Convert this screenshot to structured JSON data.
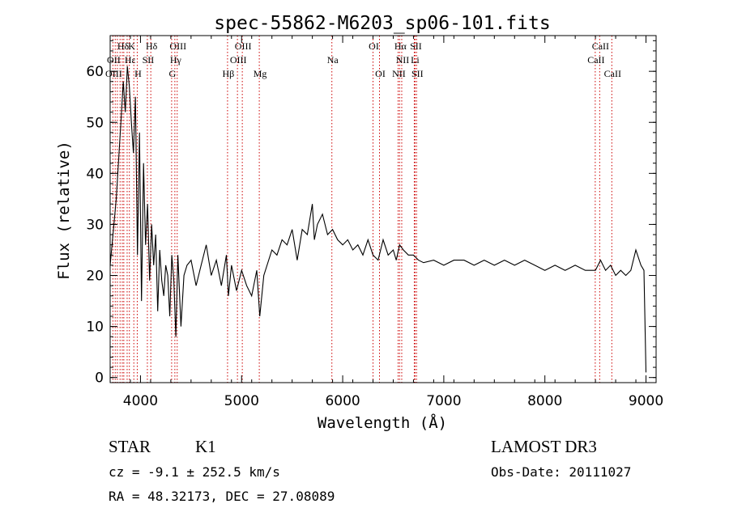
{
  "chart_data": {
    "type": "line",
    "title": "spec-55862-M6203_sp06-101.fits",
    "xlabel": "Wavelength (Å)",
    "ylabel": "Flux (relative)",
    "xlim": [
      3700,
      9100
    ],
    "ylim": [
      -1,
      67
    ],
    "xticks": [
      4000,
      5000,
      6000,
      7000,
      8000,
      9000
    ],
    "yticks": [
      0,
      10,
      20,
      30,
      40,
      50,
      60
    ],
    "xticks_minor_step": 200,
    "yticks_minor_step": 2,
    "series": [
      {
        "name": "spectrum",
        "color": "#000000",
        "x": [
          3700,
          3760,
          3800,
          3830,
          3850,
          3870,
          3890,
          3910,
          3930,
          3950,
          3970,
          3990,
          4010,
          4030,
          4050,
          4070,
          4090,
          4110,
          4130,
          4150,
          4170,
          4190,
          4210,
          4230,
          4250,
          4270,
          4290,
          4310,
          4330,
          4350,
          4370,
          4400,
          4430,
          4460,
          4500,
          4550,
          4600,
          4650,
          4700,
          4750,
          4800,
          4850,
          4870,
          4900,
          4950,
          5000,
          5050,
          5100,
          5150,
          5180,
          5220,
          5300,
          5350,
          5400,
          5450,
          5500,
          5550,
          5600,
          5650,
          5700,
          5720,
          5750,
          5800,
          5850,
          5900,
          5950,
          6000,
          6050,
          6100,
          6150,
          6200,
          6250,
          6300,
          6350,
          6400,
          6450,
          6500,
          6530,
          6563,
          6600,
          6650,
          6700,
          6750,
          6800,
          6900,
          7000,
          7100,
          7200,
          7300,
          7400,
          7500,
          7600,
          7700,
          7800,
          7900,
          8000,
          8100,
          8200,
          8300,
          8400,
          8500,
          8550,
          8600,
          8650,
          8700,
          8750,
          8800,
          8850,
          8900,
          8950,
          8980,
          9000
        ],
        "y": [
          22,
          35,
          48,
          58,
          52,
          61,
          57,
          50,
          44,
          55,
          24,
          48,
          15,
          42,
          26,
          34,
          19,
          30,
          22,
          28,
          13,
          25,
          19,
          16,
          22,
          20,
          12,
          24,
          19,
          8,
          24,
          10,
          20,
          22,
          23,
          18,
          22,
          26,
          20,
          23,
          18,
          24,
          16,
          22,
          17,
          21,
          18,
          16,
          21,
          12,
          20,
          25,
          24,
          27,
          26,
          29,
          23,
          29,
          28,
          34,
          27,
          30,
          32,
          28,
          29,
          27,
          26,
          27,
          25,
          26,
          24,
          27,
          24,
          23,
          27,
          24,
          25,
          23,
          26,
          25,
          24,
          24,
          23,
          22.5,
          23,
          22,
          23,
          23,
          22,
          23,
          22,
          23,
          22,
          23,
          22,
          21,
          22,
          21,
          22,
          21,
          21,
          23,
          21,
          22,
          20,
          21,
          20,
          21,
          25,
          22,
          21,
          1
        ]
      }
    ],
    "line_labels": [
      {
        "text": "Hδ",
        "x": 3820,
        "row": 1
      },
      {
        "text": "K",
        "x": 3905,
        "row": 1
      },
      {
        "text": "Hδ",
        "x": 4102,
        "row": 1
      },
      {
        "text": "OIII",
        "x": 4363,
        "row": 1
      },
      {
        "text": "OIII",
        "x": 5007,
        "row": 1
      },
      {
        "text": "OI",
        "x": 6300,
        "row": 1
      },
      {
        "text": "Hα",
        "x": 6563,
        "row": 1
      },
      {
        "text": "SII",
        "x": 6716,
        "row": 1
      },
      {
        "text": "CaII",
        "x": 8542,
        "row": 1
      },
      {
        "text": "OII",
        "x": 3727,
        "row": 2
      },
      {
        "text": "Hε",
        "x": 3890,
        "row": 2
      },
      {
        "text": "SII",
        "x": 4068,
        "row": 2
      },
      {
        "text": "Hγ",
        "x": 4340,
        "row": 2
      },
      {
        "text": "OIII",
        "x": 4959,
        "row": 2
      },
      {
        "text": "Na",
        "x": 5893,
        "row": 2
      },
      {
        "text": "NII",
        "x": 6584,
        "row": 2
      },
      {
        "text": "Li",
        "x": 6708,
        "row": 2
      },
      {
        "text": "CaII",
        "x": 8498,
        "row": 2
      },
      {
        "text": "OIII",
        "x": 3727,
        "row": 3
      },
      {
        "text": "H",
        "x": 3968,
        "row": 3
      },
      {
        "text": "G",
        "x": 4308,
        "row": 3
      },
      {
        "text": "Hβ",
        "x": 4861,
        "row": 3
      },
      {
        "text": "Mg",
        "x": 5175,
        "row": 3
      },
      {
        "text": "OI",
        "x": 6364,
        "row": 3
      },
      {
        "text": "NII",
        "x": 6548,
        "row": 3
      },
      {
        "text": "SII",
        "x": 6731,
        "row": 3
      },
      {
        "text": "CaII",
        "x": 8662,
        "row": 3
      }
    ],
    "marker_lines": [
      3727,
      3750,
      3771,
      3798,
      3820,
      3835,
      3868,
      3890,
      3934,
      3968,
      4068,
      4102,
      4308,
      4340,
      4363,
      4861,
      4959,
      5007,
      5175,
      5893,
      6300,
      6364,
      6548,
      6563,
      6584,
      6708,
      6716,
      6731,
      8498,
      8542,
      8662
    ],
    "marker_color": "#cc0000",
    "frame_color": "#000000"
  },
  "info": {
    "object_class": "STAR",
    "subclass": "K1",
    "survey": "LAMOST DR3",
    "redshift": "cz = -9.1 ± 252.5 km/s",
    "obs_date": "Obs-Date: 20111027",
    "coords": "RA =  48.32173, DEC =  27.08089"
  }
}
